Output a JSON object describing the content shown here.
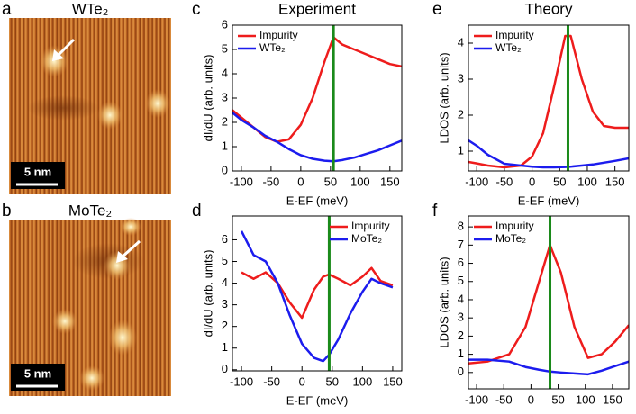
{
  "images": [
    {
      "panel": "a",
      "title": "WTe₂",
      "scale_bar": "5 nm"
    },
    {
      "panel": "b",
      "title": "MoTe₂",
      "scale_bar": "5 nm"
    }
  ],
  "chart_data": [
    {
      "type": "line",
      "panel": "c",
      "title": "Experiment",
      "xlabel": "E-EF (meV)",
      "ylabel": "dI/dU (arb. units)",
      "x": [
        -115,
        -100,
        -80,
        -60,
        -40,
        -20,
        0,
        20,
        40,
        55,
        70,
        90,
        110,
        130,
        150,
        170
      ],
      "series": [
        {
          "name": "Impurity",
          "color": "#ee1c1c",
          "values": [
            2.5,
            2.2,
            1.8,
            1.4,
            1.2,
            1.3,
            1.9,
            3.0,
            4.5,
            5.5,
            5.2,
            5.0,
            4.8,
            4.6,
            4.4,
            4.3
          ]
        },
        {
          "name": "WTe₂",
          "color": "#1c1cee",
          "values": [
            2.4,
            2.1,
            1.8,
            1.45,
            1.2,
            0.9,
            0.65,
            0.5,
            0.42,
            0.4,
            0.45,
            0.55,
            0.7,
            0.85,
            1.05,
            1.25
          ]
        }
      ],
      "vline": {
        "x": 55,
        "color": "#1a8a1a"
      },
      "xlim": [
        -115,
        170
      ],
      "xticks": [
        -100,
        -50,
        0,
        50,
        100,
        150
      ],
      "ylim": [
        0,
        6
      ],
      "yticks": [
        0,
        1,
        2,
        3,
        4,
        5,
        6
      ],
      "legend": "upper left"
    },
    {
      "type": "line",
      "panel": "d",
      "xlabel": "E-EF (meV)",
      "ylabel": "dI/dU (arb. units)",
      "x": [
        -100,
        -80,
        -60,
        -40,
        -20,
        0,
        20,
        35,
        45,
        60,
        80,
        100,
        115,
        130,
        150
      ],
      "series": [
        {
          "name": "Impurity",
          "color": "#ee1c1c",
          "values": [
            4.5,
            4.2,
            4.5,
            4.0,
            3.1,
            2.4,
            3.7,
            4.3,
            4.4,
            4.2,
            3.9,
            4.3,
            4.7,
            4.1,
            3.9
          ]
        },
        {
          "name": "MoTe₂",
          "color": "#1c1cee",
          "values": [
            6.4,
            5.3,
            5.0,
            4.0,
            2.5,
            1.2,
            0.55,
            0.4,
            0.7,
            1.4,
            2.6,
            3.6,
            4.2,
            4.0,
            3.8
          ]
        }
      ],
      "vline": {
        "x": 45,
        "color": "#1a8a1a"
      },
      "xlim": [
        -115,
        165
      ],
      "xticks": [
        -100,
        -50,
        0,
        50,
        100,
        150
      ],
      "ylim": [
        -0.05,
        7.1
      ],
      "yticks": [
        0,
        1,
        2,
        3,
        4,
        5,
        6
      ],
      "legend": "upper right"
    },
    {
      "type": "line",
      "panel": "e",
      "title": "Theory",
      "xlabel": "E-EF (meV)",
      "ylabel": "LDOS (arb. units)",
      "x": [
        -115,
        -100,
        -80,
        -50,
        -20,
        0,
        20,
        40,
        60,
        70,
        90,
        110,
        130,
        150,
        175
      ],
      "series": [
        {
          "name": "Impurity",
          "color": "#ee1c1c",
          "values": [
            0.7,
            0.66,
            0.6,
            0.55,
            0.6,
            0.85,
            1.5,
            2.8,
            4.2,
            4.2,
            3.0,
            2.1,
            1.7,
            1.65,
            1.65
          ]
        },
        {
          "name": "WTe₂",
          "color": "#1c1cee",
          "values": [
            1.3,
            1.15,
            0.9,
            0.65,
            0.6,
            0.57,
            0.55,
            0.55,
            0.56,
            0.57,
            0.6,
            0.63,
            0.68,
            0.73,
            0.8
          ]
        }
      ],
      "vline": {
        "x": 65,
        "color": "#1a8a1a"
      },
      "xlim": [
        -115,
        175
      ],
      "xticks": [
        -100,
        -50,
        0,
        50,
        100,
        150
      ],
      "ylim": [
        0.45,
        4.5
      ],
      "yticks": [
        1,
        2,
        3,
        4
      ],
      "legend": "upper left"
    },
    {
      "type": "line",
      "panel": "f",
      "xlabel": "E-EF (meV)",
      "ylabel": "LDOS (arb. units)",
      "x": [
        -115,
        -80,
        -40,
        -10,
        15,
        35,
        55,
        80,
        105,
        130,
        155,
        180
      ],
      "series": [
        {
          "name": "Impurity",
          "color": "#ee1c1c",
          "values": [
            0.5,
            0.6,
            1.0,
            2.5,
            5.0,
            7.0,
            5.5,
            2.5,
            0.8,
            1.0,
            1.7,
            2.6
          ]
        },
        {
          "name": "MoTe₂",
          "color": "#1c1cee",
          "values": [
            0.7,
            0.7,
            0.6,
            0.3,
            0.15,
            0.05,
            0.0,
            -0.05,
            -0.1,
            0.1,
            0.35,
            0.6
          ]
        }
      ],
      "vline": {
        "x": 35,
        "color": "#1a8a1a"
      },
      "xlim": [
        -115,
        180
      ],
      "xticks": [
        -100,
        -50,
        0,
        50,
        100,
        150
      ],
      "ylim": [
        -0.9,
        8.6
      ],
      "yticks": [
        0,
        1,
        2,
        3,
        4,
        5,
        6,
        7,
        8
      ],
      "legend": "upper left"
    }
  ]
}
